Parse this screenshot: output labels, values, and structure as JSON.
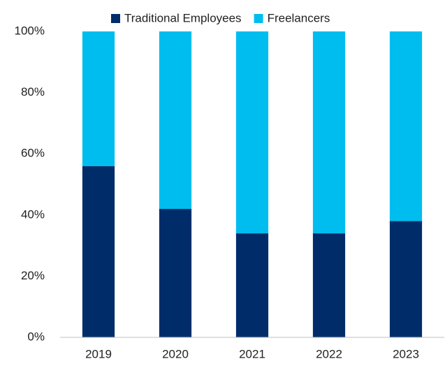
{
  "chart_data": {
    "type": "stacked_bar",
    "categories": [
      "2019",
      "2020",
      "2021",
      "2022",
      "2023"
    ],
    "series": [
      {
        "name": "Traditional Employees",
        "color": "#002d6a",
        "values": [
          56,
          42,
          34,
          34,
          38
        ]
      },
      {
        "name": "Freelancers",
        "color": "#00bdef",
        "values": [
          44,
          58,
          66,
          66,
          62
        ]
      }
    ],
    "ylim": [
      0,
      100
    ],
    "yticks": [
      {
        "value": 0,
        "label": "0%"
      },
      {
        "value": 20,
        "label": "20%"
      },
      {
        "value": 40,
        "label": "40%"
      },
      {
        "value": 60,
        "label": "60%"
      },
      {
        "value": 80,
        "label": "80%"
      },
      {
        "value": 100,
        "label": "100%"
      }
    ],
    "legend": "top"
  }
}
